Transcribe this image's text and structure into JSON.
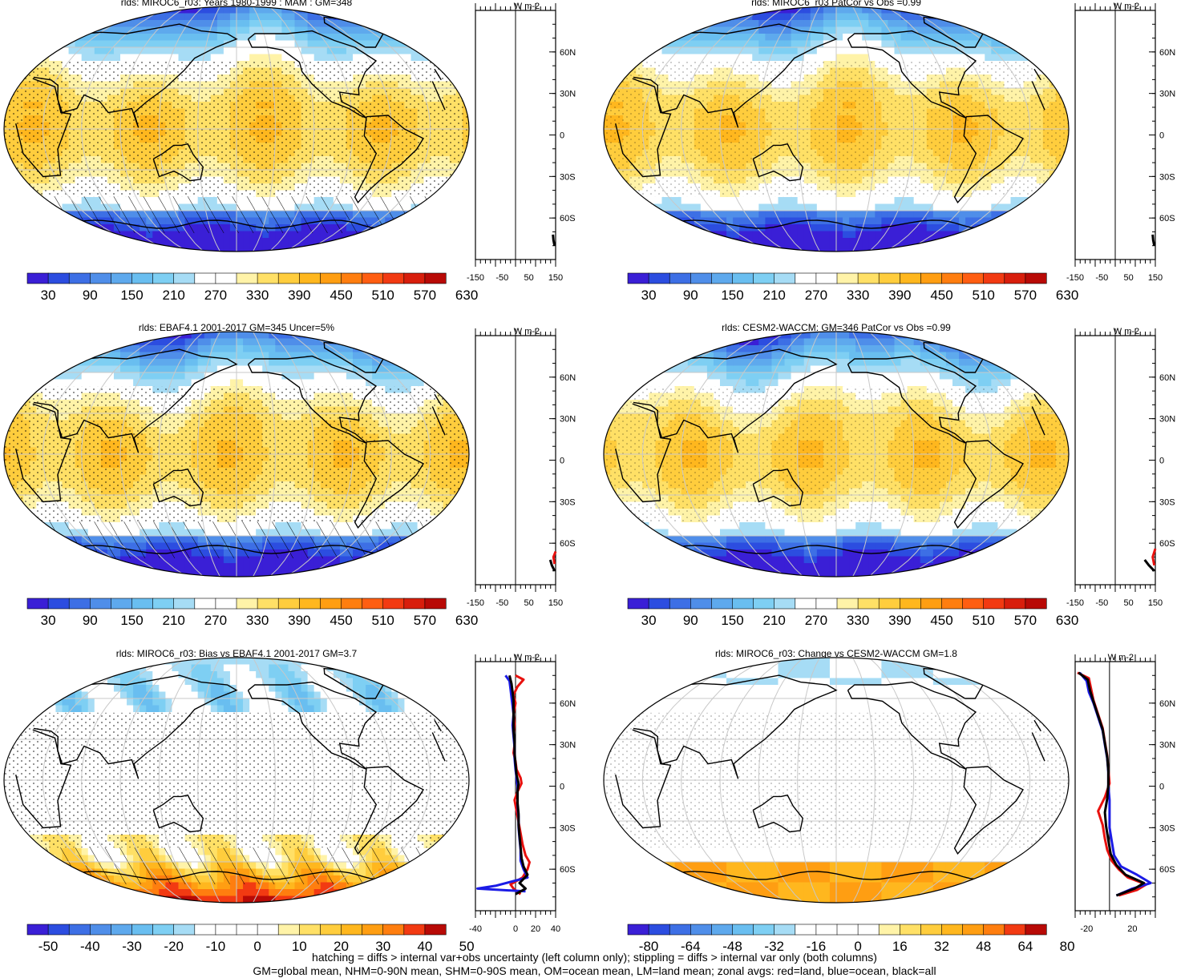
{
  "footnote": {
    "line1": "hatching = diffs > internal var+obs uncertainty (left column only); stippling = diffs > internal var only (both columns)",
    "line2": "GM=global mean, NHM=0-90N mean, SHM=0-90S mean, OM=ocean mean, LM=land mean; zonal avgs: red=land, blue=ocean, black=all"
  },
  "chart_data": [
    {
      "type": "heatmap",
      "title": "rlds: MIROC6_r03: Years 1980-1999 : MAM : GM=348",
      "colorbar_labels": [
        "30",
        "90",
        "150",
        "210",
        "270",
        "330",
        "390",
        "450",
        "510",
        "570",
        "630"
      ],
      "colorbar_range": [
        0,
        660
      ],
      "hatching": true,
      "zonal": {
        "unit": "W m-2",
        "xticks": [
          "-150",
          "-50",
          "50",
          "150"
        ],
        "xlim": [
          -150,
          150
        ],
        "latticks": [
          "60N",
          "30N",
          "0",
          "30S",
          "60S"
        ],
        "black": [
          [
            140,
            -72
          ],
          [
            142,
            -76
          ],
          [
            146,
            -80
          ]
        ]
      }
    },
    {
      "type": "heatmap",
      "title": "rlds: MIROC6_r03 PatCor vs Obs =0.99",
      "colorbar_labels": [
        "30",
        "90",
        "150",
        "210",
        "270",
        "330",
        "390",
        "450",
        "510",
        "570",
        "630"
      ],
      "colorbar_range": [
        0,
        660
      ],
      "hatching": false,
      "zonal": {
        "unit": "W m-2",
        "xticks": [
          "-150",
          "-50",
          "50",
          "150"
        ],
        "xlim": [
          -150,
          150
        ],
        "latticks": [
          "60N",
          "30N",
          "0",
          "30S",
          "60S"
        ],
        "black": [
          [
            140,
            -72
          ],
          [
            142,
            -76
          ],
          [
            146,
            -80
          ]
        ]
      }
    },
    {
      "type": "heatmap",
      "title": "rlds: EBAF4.1 2001-2017 GM=345 Uncer=5%",
      "colorbar_labels": [
        "30",
        "90",
        "150",
        "210",
        "270",
        "330",
        "390",
        "450",
        "510",
        "570",
        "630"
      ],
      "colorbar_range": [
        0,
        660
      ],
      "hatching": true,
      "zonal": {
        "unit": "W m-2",
        "xticks": [
          "-150",
          "-50",
          "50",
          "150"
        ],
        "xlim": [
          -150,
          150
        ],
        "latticks": [
          "60N",
          "30N",
          "0",
          "30S",
          "60S"
        ],
        "red": [
          [
            150,
            -66
          ],
          [
            142,
            -70
          ],
          [
            146,
            -75
          ]
        ],
        "black": [
          [
            130,
            -72
          ],
          [
            136,
            -76
          ],
          [
            146,
            -80
          ]
        ]
      }
    },
    {
      "type": "heatmap",
      "title": "rlds: CESM2-WACCM: GM=346 PatCor vs Obs =0.99",
      "colorbar_labels": [
        "30",
        "90",
        "150",
        "210",
        "270",
        "330",
        "390",
        "450",
        "510",
        "570",
        "630"
      ],
      "colorbar_range": [
        0,
        660
      ],
      "hatching": false,
      "zonal": {
        "unit": "W m-2",
        "xticks": [
          "-150",
          "-50",
          "50",
          "150"
        ],
        "xlim": [
          -150,
          150
        ],
        "latticks": [
          "60N",
          "30N",
          "0",
          "30S",
          "60S"
        ],
        "red": [
          [
            150,
            -64
          ],
          [
            140,
            -70
          ],
          [
            146,
            -76
          ]
        ],
        "black": [
          [
            110,
            -72
          ],
          [
            126,
            -76
          ],
          [
            146,
            -80
          ]
        ]
      }
    },
    {
      "type": "heatmap",
      "title": "rlds: MIROC6_r03: Bias vs EBAF4.1 2001-2017 GM=3.7",
      "colorbar_labels": [
        "-50",
        "-40",
        "-30",
        "-20",
        "-10",
        "0",
        "10",
        "20",
        "30",
        "40",
        "50"
      ],
      "colorbar_range": [
        -55,
        55
      ],
      "hatching": true,
      "zonal": {
        "unit": "W m-2",
        "xticks": [
          "-40",
          "0",
          "20",
          "40"
        ],
        "xlim": [
          -40,
          40
        ],
        "latticks": [
          "60N",
          "30N",
          "0",
          "30S",
          "60S"
        ],
        "red": [
          [
            0,
            80
          ],
          [
            8,
            77
          ],
          [
            2,
            72
          ],
          [
            -2,
            66
          ],
          [
            0,
            60
          ],
          [
            -2,
            52
          ],
          [
            -1,
            45
          ],
          [
            -2,
            38
          ],
          [
            -1,
            30
          ],
          [
            -2,
            24
          ],
          [
            0,
            18
          ],
          [
            1,
            12
          ],
          [
            5,
            6
          ],
          [
            6,
            2
          ],
          [
            2,
            -4
          ],
          [
            -1,
            -10
          ],
          [
            1,
            -18
          ],
          [
            3,
            -26
          ],
          [
            5,
            -34
          ],
          [
            7,
            -42
          ],
          [
            10,
            -50
          ],
          [
            14,
            -55
          ],
          [
            12,
            -60
          ],
          [
            7,
            -66
          ],
          [
            -5,
            -71
          ],
          [
            -2,
            -74
          ],
          [
            5,
            -78
          ]
        ],
        "blue": [
          [
            -10,
            80
          ],
          [
            -6,
            76
          ],
          [
            -5,
            70
          ],
          [
            -4,
            64
          ],
          [
            -3,
            58
          ],
          [
            -2,
            52
          ],
          [
            -3,
            44
          ],
          [
            -2,
            36
          ],
          [
            -1,
            28
          ],
          [
            -1,
            20
          ],
          [
            0,
            12
          ],
          [
            1,
            6
          ],
          [
            2,
            0
          ],
          [
            2,
            -6
          ],
          [
            2,
            -14
          ],
          [
            3,
            -22
          ],
          [
            3,
            -30
          ],
          [
            4,
            -38
          ],
          [
            5,
            -46
          ],
          [
            5,
            -54
          ],
          [
            8,
            -60
          ],
          [
            12,
            -66
          ],
          [
            -20,
            -72
          ],
          [
            -38,
            -74
          ],
          [
            10,
            -76
          ]
        ],
        "black": [
          [
            -6,
            80
          ],
          [
            -4,
            74
          ],
          [
            -3,
            68
          ],
          [
            -2,
            62
          ],
          [
            -2,
            56
          ],
          [
            -2,
            48
          ],
          [
            -2,
            40
          ],
          [
            -1,
            32
          ],
          [
            -1,
            24
          ],
          [
            0,
            16
          ],
          [
            1,
            8
          ],
          [
            3,
            2
          ],
          [
            2,
            -4
          ],
          [
            2,
            -12
          ],
          [
            3,
            -20
          ],
          [
            3,
            -28
          ],
          [
            4,
            -36
          ],
          [
            5,
            -44
          ],
          [
            6,
            -52
          ],
          [
            8,
            -58
          ],
          [
            12,
            -64
          ],
          [
            4,
            -70
          ],
          [
            10,
            -74
          ],
          [
            0,
            -78
          ]
        ]
      }
    },
    {
      "type": "heatmap",
      "title": "rlds: MIROC6_r03: Change vs CESM2-WACCM GM=1.8",
      "colorbar_labels": [
        "-80",
        "-64",
        "-48",
        "-32",
        "-16",
        "0",
        "16",
        "32",
        "48",
        "64",
        "80"
      ],
      "colorbar_range": [
        -88,
        88
      ],
      "hatching": false,
      "zonal": {
        "unit": "W m-2",
        "xticks": [
          "-20",
          "20"
        ],
        "xlim": [
          -30,
          40
        ],
        "latticks": [
          "60N",
          "30N",
          "0",
          "30S",
          "60S"
        ],
        "red": [
          [
            -28,
            82
          ],
          [
            -18,
            78
          ],
          [
            -16,
            70
          ],
          [
            -14,
            62
          ],
          [
            -10,
            52
          ],
          [
            -6,
            42
          ],
          [
            -4,
            32
          ],
          [
            -2,
            22
          ],
          [
            -1,
            12
          ],
          [
            0,
            2
          ],
          [
            -4,
            -8
          ],
          [
            -10,
            -18
          ],
          [
            -6,
            -28
          ],
          [
            -4,
            -38
          ],
          [
            -2,
            -46
          ],
          [
            2,
            -54
          ],
          [
            8,
            -60
          ],
          [
            16,
            -66
          ],
          [
            32,
            -71
          ],
          [
            24,
            -75
          ],
          [
            8,
            -79
          ]
        ],
        "blue": [
          [
            -26,
            82
          ],
          [
            -20,
            76
          ],
          [
            -18,
            68
          ],
          [
            -14,
            60
          ],
          [
            -10,
            50
          ],
          [
            -6,
            40
          ],
          [
            -4,
            30
          ],
          [
            -2,
            20
          ],
          [
            -1,
            10
          ],
          [
            -1,
            0
          ],
          [
            0,
            -10
          ],
          [
            0,
            -20
          ],
          [
            0,
            -30
          ],
          [
            2,
            -40
          ],
          [
            4,
            -50
          ],
          [
            10,
            -58
          ],
          [
            24,
            -64
          ],
          [
            36,
            -70
          ],
          [
            20,
            -74
          ],
          [
            6,
            -79
          ]
        ],
        "black": [
          [
            -27,
            82
          ],
          [
            -19,
            77
          ],
          [
            -17,
            69
          ],
          [
            -14,
            61
          ],
          [
            -10,
            51
          ],
          [
            -6,
            41
          ],
          [
            -4,
            31
          ],
          [
            -2,
            21
          ],
          [
            -1,
            11
          ],
          [
            -1,
            1
          ],
          [
            -2,
            -9
          ],
          [
            -4,
            -19
          ],
          [
            -3,
            -29
          ],
          [
            -1,
            -39
          ],
          [
            1,
            -49
          ],
          [
            6,
            -57
          ],
          [
            14,
            -64
          ],
          [
            30,
            -70
          ],
          [
            22,
            -74
          ],
          [
            6,
            -79
          ]
        ]
      }
    }
  ]
}
